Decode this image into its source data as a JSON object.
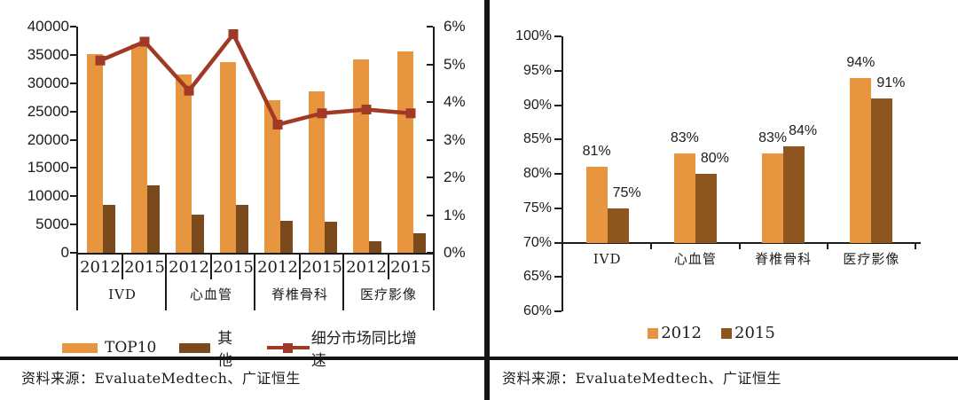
{
  "chart_data": [
    {
      "panel": "left",
      "type": "bar+line",
      "categories": [
        "IVD",
        "心血管",
        "脊椎骨科",
        "医疗影像"
      ],
      "sub_categories": [
        "2012",
        "2015"
      ],
      "series": [
        {
          "name": "TOP10",
          "type": "bar",
          "axis": "left",
          "color": "#E89540",
          "values": [
            35100,
            36800,
            31600,
            33700,
            27000,
            28500,
            34200,
            35600
          ]
        },
        {
          "name": "其他",
          "type": "bar",
          "axis": "left",
          "color": "#7B4A1C",
          "values": [
            8500,
            12000,
            6700,
            8500,
            5600,
            5500,
            2100,
            3400
          ]
        },
        {
          "name": "细分市场同比增速",
          "type": "line",
          "axis": "right",
          "color": "#A03A26",
          "unit": "%",
          "values": [
            5.1,
            5.6,
            4.3,
            5.8,
            3.4,
            3.7,
            3.8,
            3.7
          ]
        }
      ],
      "y_left_axis": {
        "min": 0,
        "max": 40000,
        "step": 5000,
        "tick_labels": [
          "0",
          "5000",
          "10000",
          "15000",
          "20000",
          "25000",
          "30000",
          "35000",
          "40000"
        ]
      },
      "y_right_axis": {
        "min": 0,
        "max": 6,
        "step": 1,
        "tick_labels": [
          "0%",
          "1%",
          "2%",
          "3%",
          "4%",
          "5%",
          "6%"
        ]
      },
      "grid": false,
      "legend_position": "bottom",
      "source": "资料来源：EvaluateMedtech、广证恒生"
    },
    {
      "panel": "right",
      "type": "bar",
      "categories": [
        "IVD",
        "心血管",
        "脊椎骨科",
        "医疗影像"
      ],
      "series": [
        {
          "name": "2012",
          "color": "#E89540",
          "values": [
            81,
            83,
            83,
            94
          ],
          "labels": [
            "81%",
            "83%",
            "83%",
            "94%"
          ]
        },
        {
          "name": "2015",
          "color": "#8C561E",
          "values": [
            75,
            80,
            84,
            91
          ],
          "labels": [
            "75%",
            "80%",
            "84%",
            "91%"
          ]
        }
      ],
      "y_axis": {
        "min": 60,
        "max": 100,
        "step": 5,
        "baseline": 70,
        "tick_suffix": "%",
        "tick_labels": [
          "60%",
          "65%",
          "70%",
          "75%",
          "80%",
          "85%",
          "90%",
          "95%",
          "100%"
        ]
      },
      "grid": false,
      "legend_position": "bottom",
      "source": "资料来源：EvaluateMedtech、广证恒生"
    }
  ],
  "colors": {
    "axis": "#1c1c1c",
    "border": "#141414",
    "background": "#ffffff"
  }
}
